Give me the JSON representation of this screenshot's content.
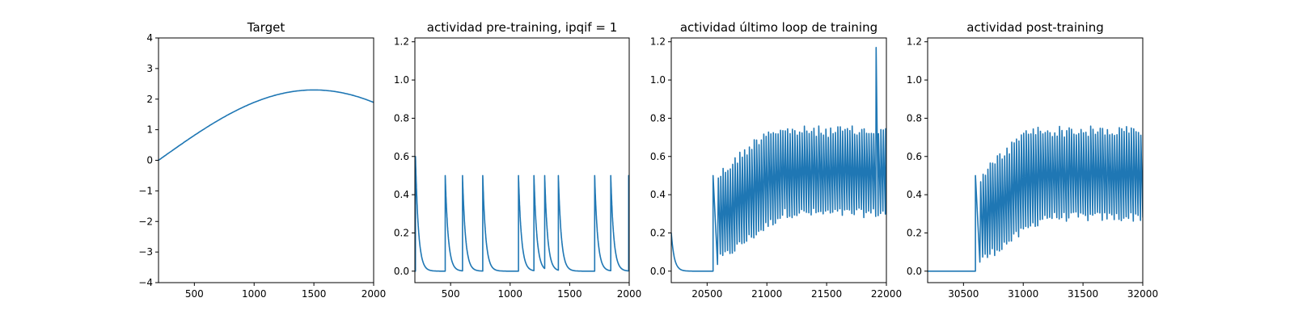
{
  "chart_data": [
    {
      "type": "line",
      "title": "Target",
      "xlim": [
        200,
        2000
      ],
      "ylim": [
        -4,
        4
      ],
      "xticks": [
        500,
        1000,
        1500,
        2000
      ],
      "yticks": [
        -4,
        -3,
        -2,
        -1,
        0,
        1,
        2,
        3,
        4
      ],
      "series": [
        {
          "kind": "sine",
          "x_start": 200,
          "x_end": 2000,
          "amplitude": 2.3,
          "period": 5200,
          "peak_x": 1500
        }
      ]
    },
    {
      "type": "line",
      "title": "actividad pre-training, ipqif = 1",
      "xlim": [
        200,
        2000
      ],
      "ylim": [
        -0.06,
        1.22
      ],
      "xticks": [
        500,
        1000,
        1500,
        2000
      ],
      "yticks": [
        0.0,
        0.2,
        0.4,
        0.6,
        0.8,
        1.0,
        1.2
      ],
      "series": [
        {
          "kind": "spikes",
          "x_start": 200,
          "x_end": 2000,
          "initial": {
            "x": 205,
            "peak": 0.6
          },
          "spikes": [
            {
              "x": 455,
              "peak": 0.5
            },
            {
              "x": 600,
              "peak": 0.5
            },
            {
              "x": 770,
              "peak": 0.5
            },
            {
              "x": 1070,
              "peak": 0.5
            },
            {
              "x": 1200,
              "peak": 0.5
            },
            {
              "x": 1290,
              "peak": 0.5
            },
            {
              "x": 1405,
              "peak": 0.5
            },
            {
              "x": 1710,
              "peak": 0.5
            },
            {
              "x": 1845,
              "peak": 0.5
            },
            {
              "x": 1995,
              "peak": 0.5
            }
          ],
          "decay": 25
        }
      ]
    },
    {
      "type": "line",
      "title": "actividad último loop de training",
      "xlim": [
        20200,
        22000
      ],
      "ylim": [
        -0.06,
        1.22
      ],
      "xticks": [
        20500,
        21000,
        21500,
        22000
      ],
      "yticks": [
        0.0,
        0.2,
        0.4,
        0.6,
        0.8,
        1.0,
        1.2
      ],
      "series": [
        {
          "kind": "oscillation",
          "x_start": 20200,
          "x_end": 22000,
          "start_value": 0.2,
          "quiet_until": 20550,
          "onset_peak": 0.5,
          "period": 20,
          "max_peak": 0.76,
          "min_trough": 0.28,
          "outlier": {
            "x": 21920,
            "peak": 1.17
          }
        }
      ]
    },
    {
      "type": "line",
      "title": "actividad post-training",
      "xlim": [
        30200,
        32000
      ],
      "ylim": [
        -0.06,
        1.22
      ],
      "xticks": [
        30500,
        31000,
        31500,
        32000
      ],
      "yticks": [
        0.0,
        0.2,
        0.4,
        0.6,
        0.8,
        1.0,
        1.2
      ],
      "series": [
        {
          "kind": "oscillation",
          "x_start": 30200,
          "x_end": 32000,
          "start_value": 0.0,
          "quiet_until": 30600,
          "onset_peak": 0.5,
          "period": 20,
          "max_peak": 0.76,
          "min_trough": 0.26,
          "outlier": null
        }
      ]
    }
  ],
  "colors": {
    "line": "#1f77b4",
    "axes": "#000000",
    "background": "#ffffff"
  }
}
